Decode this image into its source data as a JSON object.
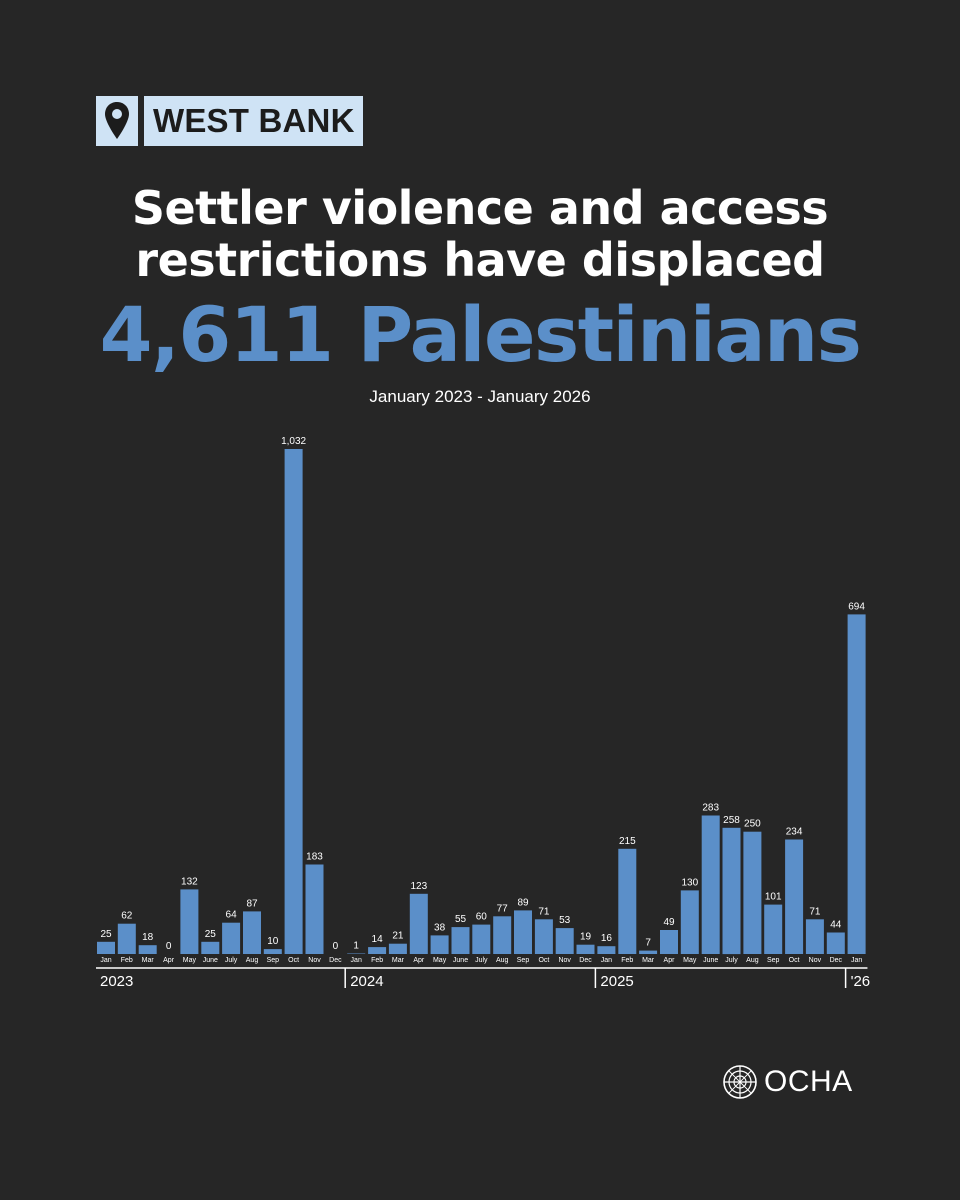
{
  "tag": {
    "label": "WEST BANK",
    "icon": "map-pin-icon"
  },
  "headline": {
    "line1": "Settler violence and access",
    "line2": "restrictions have displaced",
    "highlight": "4,611 Palestinians"
  },
  "subtitle": "January 2023 - January 2026",
  "colors": {
    "background": "#262626",
    "bar": "#5b8fc9",
    "highlight": "#5b8fc9",
    "tag_bg": "#cfe3f5"
  },
  "chart_data": {
    "type": "bar",
    "categories": [
      "Jan",
      "Feb",
      "Mar",
      "Apr",
      "May",
      "June",
      "July",
      "Aug",
      "Sep",
      "Oct",
      "Nov",
      "Dec",
      "Jan",
      "Feb",
      "Mar",
      "Apr",
      "May",
      "June",
      "July",
      "Aug",
      "Sep",
      "Oct",
      "Nov",
      "Dec",
      "Jan",
      "Feb",
      "Mar",
      "Apr",
      "May",
      "June",
      "July",
      "Aug",
      "Sep",
      "Oct",
      "Nov",
      "Dec",
      "Jan"
    ],
    "values": [
      25,
      62,
      18,
      0,
      132,
      25,
      64,
      87,
      10,
      1032,
      183,
      0,
      1,
      14,
      21,
      123,
      38,
      55,
      60,
      77,
      89,
      71,
      53,
      19,
      16,
      215,
      7,
      49,
      130,
      283,
      258,
      250,
      101,
      234,
      71,
      44,
      694
    ],
    "data_labels": [
      "25",
      "62",
      "18",
      "0",
      "132",
      "25",
      "64",
      "87",
      "10",
      "1,032",
      "183",
      "0",
      "1",
      "14",
      "21",
      "123",
      "38",
      "55",
      "60",
      "77",
      "89",
      "71",
      "53",
      "19",
      "16",
      "215",
      "7",
      "49",
      "130",
      "283",
      "258",
      "250",
      "101",
      "234",
      "71",
      "44",
      "694"
    ],
    "year_groups": [
      {
        "label": "2023",
        "start": 0
      },
      {
        "label": "2024",
        "start": 12
      },
      {
        "label": "2025",
        "start": 24
      },
      {
        "label": "'26",
        "start": 36
      }
    ],
    "ylim": [
      0,
      1032
    ],
    "grid": false,
    "legend": "none"
  },
  "logo": {
    "text": "OCHA",
    "icon": "un-emblem-icon"
  }
}
